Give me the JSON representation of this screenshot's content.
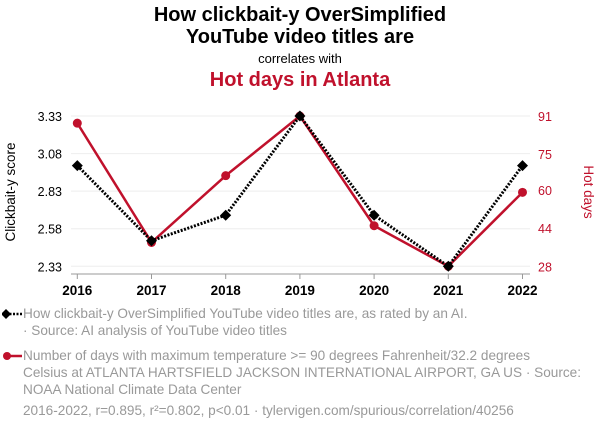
{
  "header": {
    "title_line1": "How clickbait-y OverSimplified",
    "title_line2": "YouTube video titles are",
    "subtitle": "correlates with",
    "title2": "Hot days in Atlanta"
  },
  "legend": [
    {
      "line1": "How clickbait-y OverSimplified YouTube video titles are, as rated by an AI.",
      "line2": "· Source: AI analysis of YouTube video titles",
      "line3": ""
    },
    {
      "line1": "Number of days with maximum temperature >= 90 degrees Fahrenheit/32.2 degrees",
      "line2": "Celsius at ATLANTA HARTSFIELD JACKSON INTERNATIONAL AIRPORT, GA US · Source:",
      "line3": "NOAA National Climate Data Center"
    }
  ],
  "footer": {
    "text": "2016-2022, r=0.895, r²=0.802, p<0.01 · tylervigen.com/spurious/correlation/40256"
  },
  "colors": {
    "series1": "#000000",
    "series2": "#c0112c",
    "grid": "#eeeeee",
    "axis": "#999999"
  },
  "chart_data": {
    "type": "line",
    "title": "How clickbait-y OverSimplified YouTube video titles are correlates with Hot days in Atlanta",
    "x": [
      "2016",
      "2017",
      "2018",
      "2019",
      "2020",
      "2021",
      "2022"
    ],
    "xlabel": "",
    "y_left": {
      "label": "Clickbait-y score",
      "ticks": [
        "2.33",
        "2.58",
        "2.83",
        "3.08",
        "3.33"
      ],
      "range": [
        2.33,
        3.33
      ]
    },
    "y_right": {
      "label": "Hot days",
      "ticks": [
        "28",
        "44",
        "60",
        "75",
        "91"
      ],
      "range": [
        28,
        91
      ]
    },
    "grid": true,
    "legend_position": "bottom",
    "series": [
      {
        "name": "How clickbait-y OverSimplified YouTube video titles are",
        "axis": "left",
        "style": "dotted",
        "marker": "diamond",
        "values": [
          3.0,
          2.5,
          2.67,
          3.33,
          2.67,
          2.33,
          3.0
        ]
      },
      {
        "name": "Hot days in Atlanta",
        "axis": "right",
        "style": "solid",
        "marker": "circle",
        "values": [
          88,
          38,
          66,
          91,
          45,
          28,
          59
        ]
      }
    ]
  }
}
